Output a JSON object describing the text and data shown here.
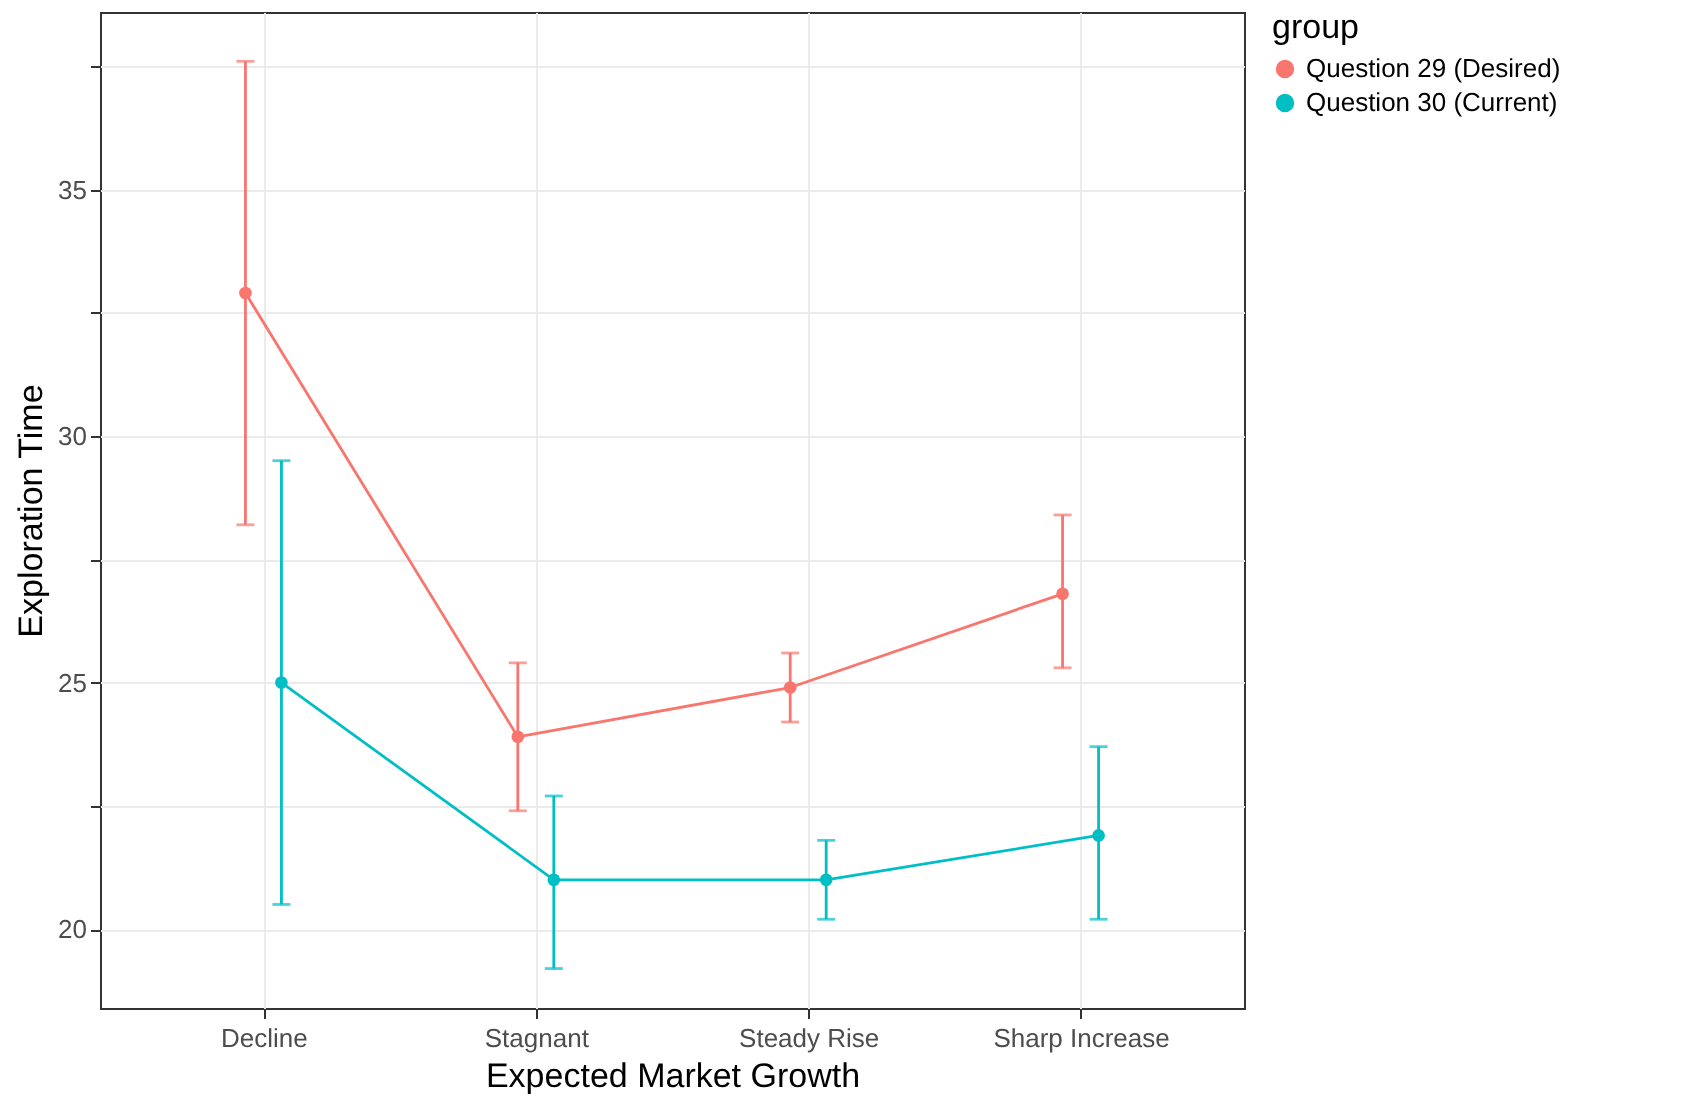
{
  "chart_data": {
    "type": "line",
    "xlabel": "Expected Market Growth",
    "ylabel": "Exploration Time",
    "legend_title": "group",
    "categories": [
      "Decline",
      "Stagnant",
      "Steady Rise",
      "Sharp Increase"
    ],
    "series": [
      {
        "name": "Question 29 (Desired)",
        "color": "#f8766d",
        "values": [
          32.9,
          23.9,
          24.9,
          26.8
        ],
        "errors": [
          [
            28.2,
            37.6
          ],
          [
            22.4,
            25.4
          ],
          [
            24.2,
            25.6
          ],
          [
            25.3,
            28.4
          ]
        ]
      },
      {
        "name": "Question 30 (Current)",
        "color": "#00bfc4",
        "values": [
          25.0,
          21.0,
          21.0,
          21.9
        ],
        "errors": [
          [
            20.5,
            29.5
          ],
          [
            19.2,
            22.7
          ],
          [
            20.2,
            21.8
          ],
          [
            20.2,
            23.7
          ]
        ]
      }
    ],
    "ylim": [
      18.4,
      38.6
    ],
    "yticks": [
      20,
      {
        "value": 22.5,
        "label": null
      },
      25,
      {
        "value": 27.5,
        "label": null
      },
      30,
      {
        "value": 32.5,
        "label": null
      },
      35,
      {
        "value": 37.5,
        "label": null
      }
    ],
    "grid": true,
    "legend": "right",
    "marker": "circle",
    "line_style": "solid"
  }
}
